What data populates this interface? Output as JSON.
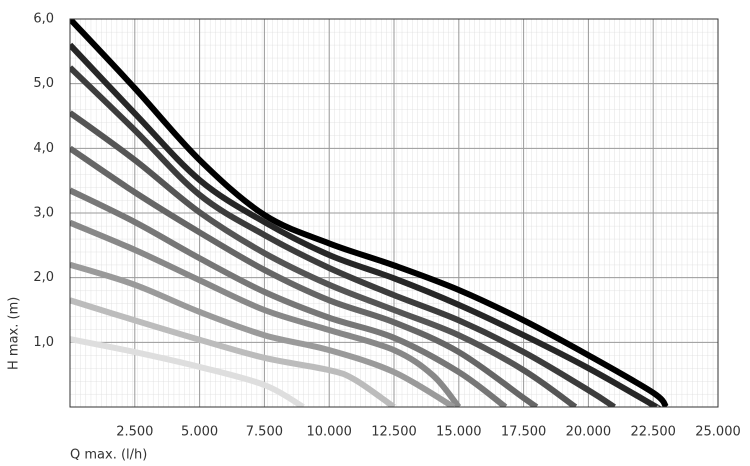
{
  "chart_data": {
    "type": "line",
    "x_label": "Q max. (l/h)",
    "y_label": "H max. (m)",
    "xlim": [
      0,
      25000
    ],
    "ylim": [
      0,
      6
    ],
    "grid": true,
    "xticks": [
      {
        "value": 2500,
        "label": "2.500"
      },
      {
        "value": 5000,
        "label": "5.000"
      },
      {
        "value": 7500,
        "label": "7.500"
      },
      {
        "value": 10000,
        "label": "10.000"
      },
      {
        "value": 12500,
        "label": "12.500"
      },
      {
        "value": 15000,
        "label": "15.000"
      },
      {
        "value": 17500,
        "label": "17.500"
      },
      {
        "value": 20000,
        "label": "20.000"
      },
      {
        "value": 22500,
        "label": "22.500"
      },
      {
        "value": 25000,
        "label": "25.000"
      }
    ],
    "yticks": [
      {
        "value": 1,
        "label": "1,0"
      },
      {
        "value": 2,
        "label": "2,0"
      },
      {
        "value": 3,
        "label": "3,0"
      },
      {
        "value": 4,
        "label": "4,0"
      },
      {
        "value": 5,
        "label": "5,0"
      },
      {
        "value": 6,
        "label": "6,0"
      }
    ],
    "series": [
      {
        "color": "#000000",
        "x": [
          0,
          2500,
          5000,
          7500,
          10000,
          12500,
          15000,
          17500,
          20000,
          22500,
          23000
        ],
        "values": [
          6.0,
          4.93,
          3.82,
          2.97,
          2.53,
          2.19,
          1.81,
          1.34,
          0.8,
          0.22,
          0
        ]
      },
      {
        "color": "#262626",
        "x": [
          0,
          2500,
          5000,
          7500,
          10000,
          12500,
          15000,
          17500,
          20000,
          22500,
          22600
        ],
        "values": [
          5.6,
          4.54,
          3.51,
          2.86,
          2.35,
          1.99,
          1.58,
          1.11,
          0.6,
          0.03,
          0
        ]
      },
      {
        "color": "#3c3c3c",
        "x": [
          0,
          2500,
          5000,
          7500,
          10000,
          12500,
          15000,
          17500,
          20000,
          21000
        ],
        "values": [
          5.25,
          4.28,
          3.28,
          2.66,
          2.15,
          1.73,
          1.34,
          0.85,
          0.26,
          0
        ]
      },
      {
        "color": "#555555",
        "x": [
          0,
          2500,
          5000,
          7500,
          10000,
          12500,
          15000,
          17500,
          19500
        ],
        "values": [
          4.55,
          3.82,
          3.01,
          2.38,
          1.89,
          1.5,
          1.11,
          0.57,
          0
        ]
      },
      {
        "color": "#666666",
        "x": [
          0,
          2500,
          5000,
          7500,
          10000,
          12500,
          15000,
          17500,
          18000
        ],
        "values": [
          4.0,
          3.32,
          2.7,
          2.12,
          1.65,
          1.31,
          0.85,
          0.14,
          0
        ]
      },
      {
        "color": "#777777",
        "x": [
          0,
          2500,
          5000,
          7500,
          10000,
          12500,
          15000,
          16800
        ],
        "values": [
          3.35,
          2.86,
          2.3,
          1.78,
          1.38,
          1.07,
          0.54,
          0
        ]
      },
      {
        "color": "#888888",
        "x": [
          0,
          2500,
          5000,
          7500,
          10000,
          12500,
          14000,
          15000
        ],
        "values": [
          2.85,
          2.43,
          1.96,
          1.5,
          1.19,
          0.88,
          0.49,
          0
        ]
      },
      {
        "color": "#9a9a9a",
        "x": [
          0,
          2500,
          5000,
          7500,
          10000,
          12500,
          14800
        ],
        "values": [
          2.2,
          1.89,
          1.47,
          1.11,
          0.88,
          0.54,
          0
        ]
      },
      {
        "color": "#bcbcbc",
        "x": [
          0,
          2500,
          5000,
          7500,
          10000,
          11000,
          12500
        ],
        "values": [
          1.65,
          1.34,
          1.04,
          0.76,
          0.57,
          0.42,
          0
        ]
      },
      {
        "color": "#dedede",
        "x": [
          0,
          2500,
          5000,
          7500,
          9000
        ],
        "values": [
          1.05,
          0.85,
          0.62,
          0.34,
          0
        ]
      }
    ]
  }
}
